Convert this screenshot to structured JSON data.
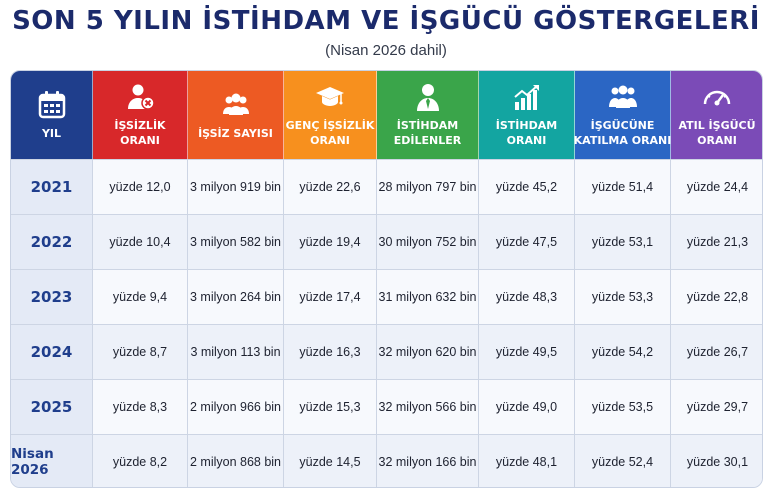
{
  "title": "SON 5 YILIN İSTİHDAM VE İŞGÜCÜ GÖSTERGELERİ",
  "subtitle": "(Nisan 2026 dahil)",
  "headers": [
    {
      "line1": "YIL",
      "line2": "",
      "icon": "calendar-icon",
      "color": "#1f3e8c"
    },
    {
      "line1": "İŞSİZLİK",
      "line2": "ORANI",
      "icon": "unemployed-person-icon",
      "color": "#d8282a"
    },
    {
      "line1": "İŞSİZ SAYISI",
      "line2": "",
      "icon": "people-group-icon",
      "color": "#ed5a23"
    },
    {
      "line1": "GENÇ İŞSİZLİK",
      "line2": "ORANI",
      "icon": "graduation-cap-icon",
      "color": "#f7901e"
    },
    {
      "line1": "İSTİHDAM",
      "line2": "EDİLENLER",
      "icon": "employee-icon",
      "color": "#3aa54a"
    },
    {
      "line1": "İSTİHDAM",
      "line2": "ORANI",
      "icon": "growth-chart-icon",
      "color": "#13a5a1"
    },
    {
      "line1": "İŞGÜCÜNE",
      "line2": "KATILMA ORANI",
      "icon": "workforce-group-icon",
      "color": "#2b66c4"
    },
    {
      "line1": "ATIL İŞGÜCÜ",
      "line2": "ORANI",
      "icon": "speedometer-icon",
      "color": "#7b4bb7"
    }
  ],
  "rows": [
    {
      "year": "2021",
      "cells": [
        "yüzde 12,0",
        "3 milyon 919 bin",
        "yüzde 22,6",
        "28 milyon 797 bin",
        "yüzde 45,2",
        "yüzde 51,4",
        "yüzde 24,4"
      ]
    },
    {
      "year": "2022",
      "cells": [
        "yüzde 10,4",
        "3 milyon 582 bin",
        "yüzde 19,4",
        "30 milyon 752 bin",
        "yüzde 47,5",
        "yüzde 53,1",
        "yüzde 21,3"
      ]
    },
    {
      "year": "2023",
      "cells": [
        "yüzde 9,4",
        "3 milyon 264 bin",
        "yüzde 17,4",
        "31 milyon 632 bin",
        "yüzde 48,3",
        "yüzde 53,3",
        "yüzde 22,8"
      ]
    },
    {
      "year": "2024",
      "cells": [
        "yüzde 8,7",
        "3 milyon 113 bin",
        "yüzde 16,3",
        "32 milyon 620 bin",
        "yüzde 49,5",
        "yüzde 54,2",
        "yüzde 26,7"
      ]
    },
    {
      "year": "2025",
      "cells": [
        "yüzde 8,3",
        "2 milyon 966 bin",
        "yüzde 15,3",
        "32 milyon 566 bin",
        "yüzde 49,0",
        "yüzde 53,5",
        "yüzde 29,7"
      ]
    },
    {
      "year": "Nisan 2026",
      "cells": [
        "yüzde 8,2",
        "2 milyon 868 bin",
        "yüzde 14,5",
        "32 milyon 166 bin",
        "yüzde 48,1",
        "yüzde 52,4",
        "yüzde 30,1"
      ]
    }
  ]
}
